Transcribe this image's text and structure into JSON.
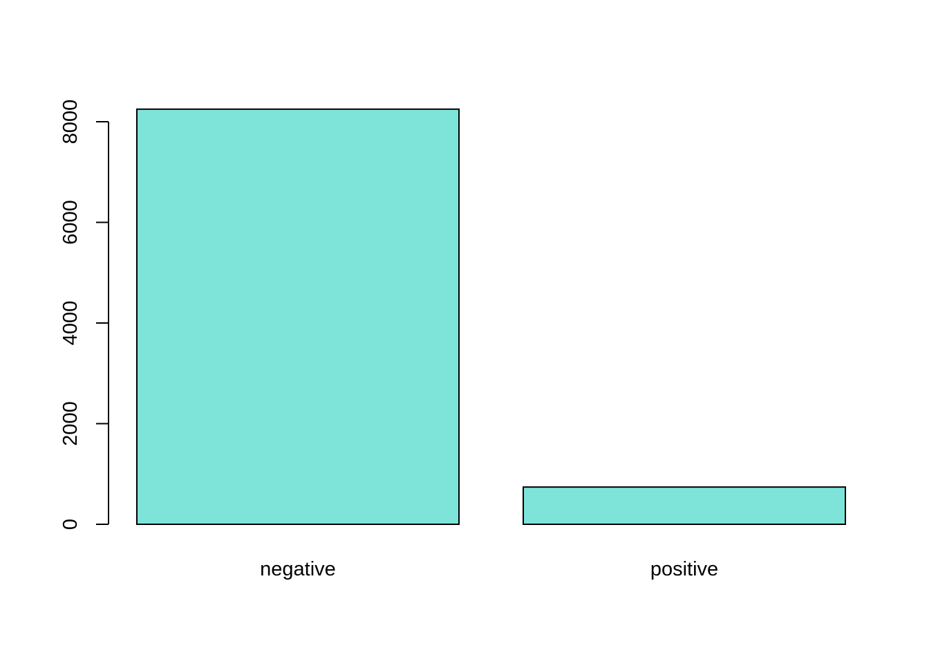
{
  "chart_data": {
    "type": "bar",
    "title": "",
    "xlabel": "",
    "ylabel": "",
    "categories": [
      "negative",
      "positive"
    ],
    "values": [
      8250,
      740
    ],
    "ylim": [
      0,
      8250
    ],
    "yticks": [
      0,
      2000,
      4000,
      6000,
      8000
    ],
    "ytick_labels": [
      "0",
      "2000",
      "4000",
      "6000",
      "8000"
    ],
    "grid": false,
    "bar_color": "#7EE4D9",
    "border_color": "#000000"
  }
}
